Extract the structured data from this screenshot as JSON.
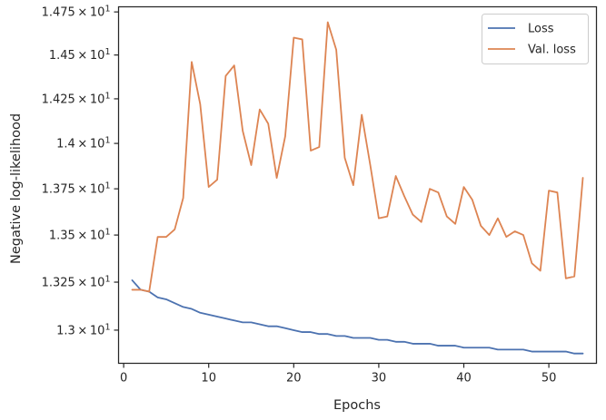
{
  "chart_data": {
    "type": "line",
    "xlabel": "Epochs",
    "ylabel": "Negative log-likelihood",
    "xlim": [
      -0.6,
      55.6
    ],
    "ylim": [
      12.83,
      14.78
    ],
    "y_scale": "log",
    "grid": false,
    "legend_position": "top-right",
    "x_ticks": [
      0,
      10,
      20,
      30,
      40,
      50
    ],
    "x_tick_labels": [
      "0",
      "10",
      "20",
      "30",
      "40",
      "50"
    ],
    "y_ticks": [
      13.0,
      13.25,
      13.5,
      13.75,
      14.0,
      14.25,
      14.5,
      14.75
    ],
    "y_tick_labels": [
      {
        "mantissa": "1.3",
        "base": "10",
        "exponent": "1"
      },
      {
        "mantissa": "1.325",
        "base": "10",
        "exponent": "1"
      },
      {
        "mantissa": "1.35",
        "base": "10",
        "exponent": "1"
      },
      {
        "mantissa": "1.375",
        "base": "10",
        "exponent": "1"
      },
      {
        "mantissa": "1.4",
        "base": "10",
        "exponent": "1"
      },
      {
        "mantissa": "1.425",
        "base": "10",
        "exponent": "1"
      },
      {
        "mantissa": "1.45",
        "base": "10",
        "exponent": "1"
      },
      {
        "mantissa": "1.475",
        "base": "10",
        "exponent": "1"
      }
    ],
    "series": [
      {
        "name": "Loss",
        "color": "#4c72b0",
        "x": [
          1,
          2,
          3,
          4,
          5,
          6,
          7,
          8,
          9,
          10,
          11,
          12,
          13,
          14,
          15,
          16,
          17,
          18,
          19,
          20,
          21,
          22,
          23,
          24,
          25,
          26,
          27,
          28,
          29,
          30,
          31,
          32,
          33,
          34,
          35,
          36,
          37,
          38,
          39,
          40,
          41,
          42,
          43,
          44,
          45,
          46,
          47,
          48,
          49,
          50,
          51,
          52,
          53,
          54
        ],
        "y": [
          13.26,
          13.21,
          13.2,
          13.17,
          13.16,
          13.14,
          13.12,
          13.11,
          13.09,
          13.08,
          13.07,
          13.06,
          13.05,
          13.04,
          13.04,
          13.03,
          13.02,
          13.02,
          13.01,
          13.0,
          12.99,
          12.99,
          12.98,
          12.98,
          12.97,
          12.97,
          12.96,
          12.96,
          12.96,
          12.95,
          12.95,
          12.94,
          12.94,
          12.93,
          12.93,
          12.93,
          12.92,
          12.92,
          12.92,
          12.91,
          12.91,
          12.91,
          12.91,
          12.9,
          12.9,
          12.9,
          12.9,
          12.89,
          12.89,
          12.89,
          12.89,
          12.89,
          12.88,
          12.88
        ]
      },
      {
        "name": "Val. loss",
        "color": "#dd8452",
        "x": [
          1,
          2,
          3,
          4,
          5,
          6,
          7,
          8,
          9,
          10,
          11,
          12,
          13,
          14,
          15,
          16,
          17,
          18,
          19,
          20,
          21,
          22,
          23,
          24,
          25,
          26,
          27,
          28,
          29,
          30,
          31,
          32,
          33,
          34,
          35,
          36,
          37,
          38,
          39,
          40,
          41,
          42,
          43,
          44,
          45,
          46,
          47,
          48,
          49,
          50,
          51,
          52,
          53,
          54
        ],
        "y": [
          13.21,
          13.21,
          13.2,
          13.49,
          13.49,
          13.53,
          13.7,
          14.46,
          14.22,
          13.76,
          13.8,
          14.38,
          14.44,
          14.07,
          13.88,
          14.19,
          14.11,
          13.81,
          14.04,
          14.6,
          14.59,
          13.96,
          13.98,
          14.69,
          14.53,
          13.92,
          13.77,
          14.16,
          13.88,
          13.59,
          13.6,
          13.82,
          13.71,
          13.61,
          13.57,
          13.75,
          13.73,
          13.6,
          13.56,
          13.76,
          13.69,
          13.55,
          13.5,
          13.59,
          13.49,
          13.52,
          13.5,
          13.35,
          13.31,
          13.74,
          13.73,
          13.27,
          13.28,
          13.81
        ]
      }
    ]
  }
}
